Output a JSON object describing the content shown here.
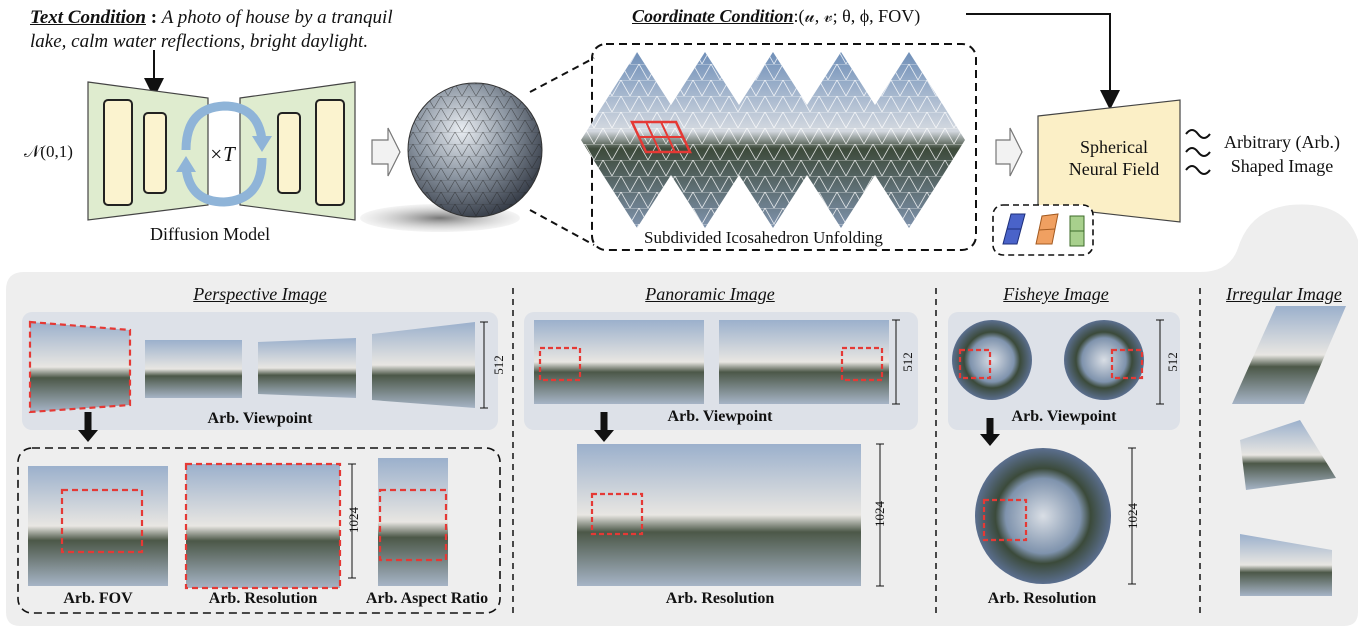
{
  "header": {
    "text_condition_label": "Text Condition",
    "text_condition_colon": " : ",
    "text_condition_line1": "A photo of house by a tranquil",
    "text_condition_line2": "lake, calm water reflections, bright daylight.",
    "coord_condition_label": "Coordinate Condition",
    "coord_condition_value": ":(𝓊, 𝓋; θ, ϕ, FOV)"
  },
  "pipeline": {
    "noise_label": "𝒩(0,1)",
    "loop_label": "×T",
    "diffusion_label": "Diffusion Model",
    "unfold_label": "Subdivided Icosahedron Unfolding",
    "neural_field_line1": "Spherical",
    "neural_field_line2": "Neural Field",
    "output_line1": "Arbitrary (Arb.)",
    "output_line2": "Shaped Image"
  },
  "sections": {
    "perspective": {
      "title": "Perspective Image",
      "viewpoint_label": "Arb.  Viewpoint",
      "dim_512": "512",
      "dim_1024": "1024",
      "fov_label": "Arb. FOV",
      "resolution_label": "Arb. Resolution",
      "aspect_label": "Arb. Aspect Ratio"
    },
    "panoramic": {
      "title": "Panoramic Image",
      "viewpoint_label": "Arb. Viewpoint",
      "dim_512": "512",
      "dim_1024": "1024",
      "resolution_label": "Arb. Resolution"
    },
    "fisheye": {
      "title": "Fisheye Image",
      "viewpoint_label": "Arb. Viewpoint",
      "dim_512": "512",
      "dim_1024": "1024",
      "resolution_label": "Arb. Resolution"
    },
    "irregular": {
      "title": "Irregular Image"
    }
  },
  "colors": {
    "diffusion_fill": "#dfeccf",
    "block_fill": "#fbf3cf",
    "field_fill": "#fbefc6",
    "panel_bg": "#eeeeee",
    "subpanel_bg": "#dde1e8",
    "loop_blue": "#8fb4d8",
    "red_dash": "#e53935"
  }
}
